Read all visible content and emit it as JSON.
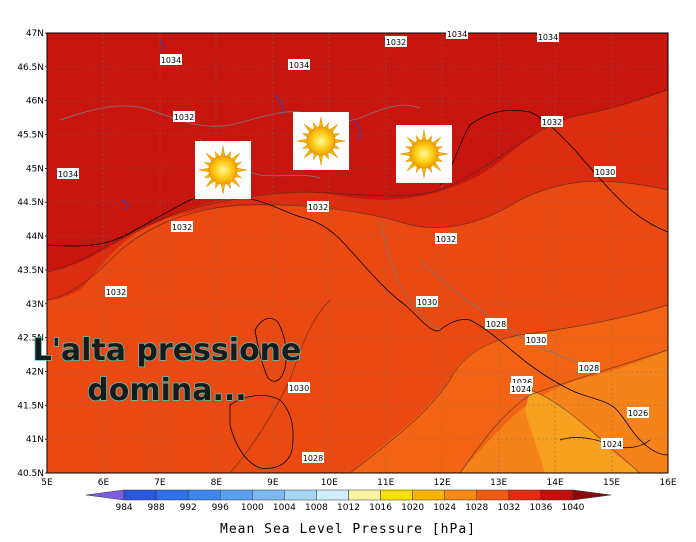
{
  "map": {
    "lat_labels": [
      "47N",
      "46.5N",
      "46N",
      "45.5N",
      "45N",
      "44.5N",
      "44N",
      "43.5N",
      "43N",
      "42.5N",
      "42N",
      "41.5N",
      "41N",
      "40.5N"
    ],
    "lon_labels": [
      "5E",
      "6E",
      "7E",
      "8E",
      "9E",
      "10E",
      "11E",
      "12E",
      "13E",
      "14E",
      "15E",
      "16E"
    ],
    "isobar_labels": [
      {
        "text": "1032"
      },
      {
        "text": "1034"
      },
      {
        "text": "1034"
      },
      {
        "text": "1034"
      },
      {
        "text": "1034"
      },
      {
        "text": "1032"
      },
      {
        "text": "1034"
      },
      {
        "text": "1032"
      },
      {
        "text": "1032"
      },
      {
        "text": "1032"
      },
      {
        "text": "1032"
      },
      {
        "text": "1030"
      },
      {
        "text": "1032"
      },
      {
        "text": "1030"
      },
      {
        "text": "1028"
      },
      {
        "text": "1030"
      },
      {
        "text": "1028"
      },
      {
        "text": "1026"
      },
      {
        "text": "1024"
      },
      {
        "text": "1026"
      },
      {
        "text": "1024"
      },
      {
        "text": "1030"
      },
      {
        "text": "1028"
      }
    ],
    "overlay_text_line1": "L'alta pressione",
    "overlay_text_line2": "domina...",
    "sun_icons": [
      {
        "name": "sun-icon-west"
      },
      {
        "name": "sun-icon-center"
      },
      {
        "name": "sun-icon-east"
      }
    ],
    "colors": {
      "p1034": "#c8160e",
      "p1032": "#dc2d10",
      "p1030": "#ea4a12",
      "p1028": "#f26414",
      "p1026": "#f6821a",
      "p1024": "#f8a020"
    }
  },
  "colorbar": {
    "ticks": [
      "984",
      "988",
      "992",
      "996",
      "1000",
      "1004",
      "1008",
      "1012",
      "1016",
      "1020",
      "1024",
      "1028",
      "1032",
      "1036",
      "1040"
    ],
    "colors": [
      "#7a5ee0",
      "#2a58e0",
      "#3070e8",
      "#3c86ec",
      "#58a0f0",
      "#7cb8f4",
      "#a6d6f6",
      "#d0eef8",
      "#f8f4a0",
      "#f8e000",
      "#f8b400",
      "#f88a14",
      "#f05a14",
      "#e02c10",
      "#c4100c",
      "#8a0a0a"
    ],
    "title": "Mean Sea Level Pressure [hPa]"
  }
}
